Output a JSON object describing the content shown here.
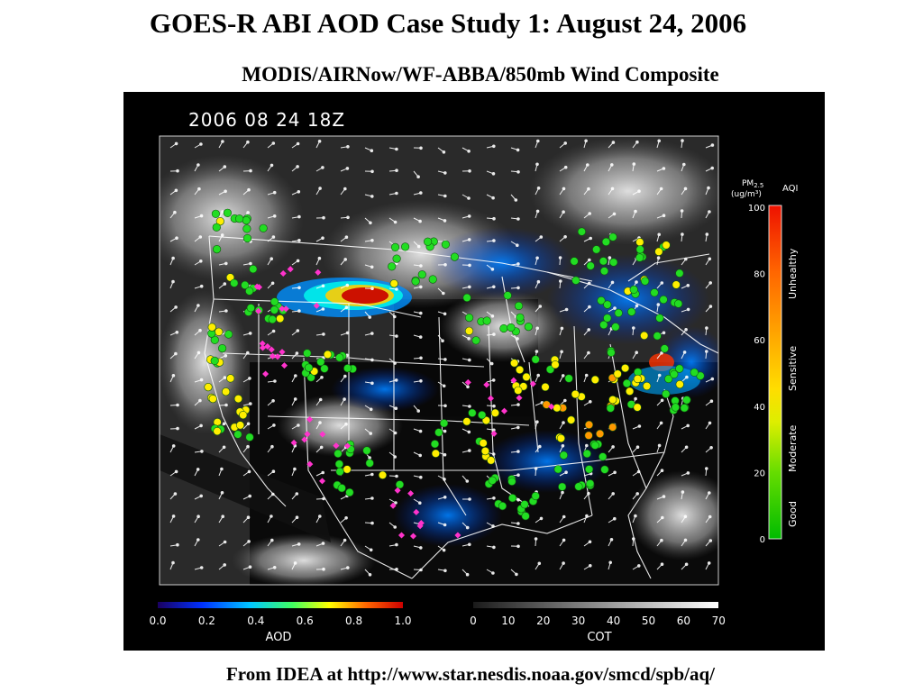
{
  "title": "GOES-R ABI AOD Case Study 1: August 24, 2006",
  "subtitle": "MODIS/AIRNow/WF-ABBA/850mb Wind Composite",
  "footer": "From IDEA at http://www.star.nesdis.noaa.gov/smcd/spb/aq/",
  "map": {
    "timestamp": "2006 08 24 18Z",
    "pm_legend": {
      "label": "PM",
      "subscript": "2.5",
      "units": "(ug/m³)",
      "aqi_label": "AQI",
      "ticks": [
        "100",
        "80",
        "60",
        "40",
        "20",
        "0"
      ],
      "categories": [
        "Unhealthy",
        "Sensitive",
        "Moderate",
        "Good"
      ]
    },
    "aod_bar": {
      "ticks": [
        "0.0",
        "0.2",
        "0.4",
        "0.6",
        "0.8",
        "1.0"
      ],
      "label": "AOD"
    },
    "cot_bar": {
      "ticks": [
        "0",
        "10",
        "20",
        "30",
        "40",
        "50",
        "60",
        "70"
      ],
      "label": "COT"
    }
  },
  "colors": {
    "panel_bg": "#000000",
    "good": "#22dd22",
    "moderate": "#ffee00",
    "sensitive": "#ff9900",
    "unhealthy": "#ff2200",
    "fire": "#ff33cc"
  }
}
